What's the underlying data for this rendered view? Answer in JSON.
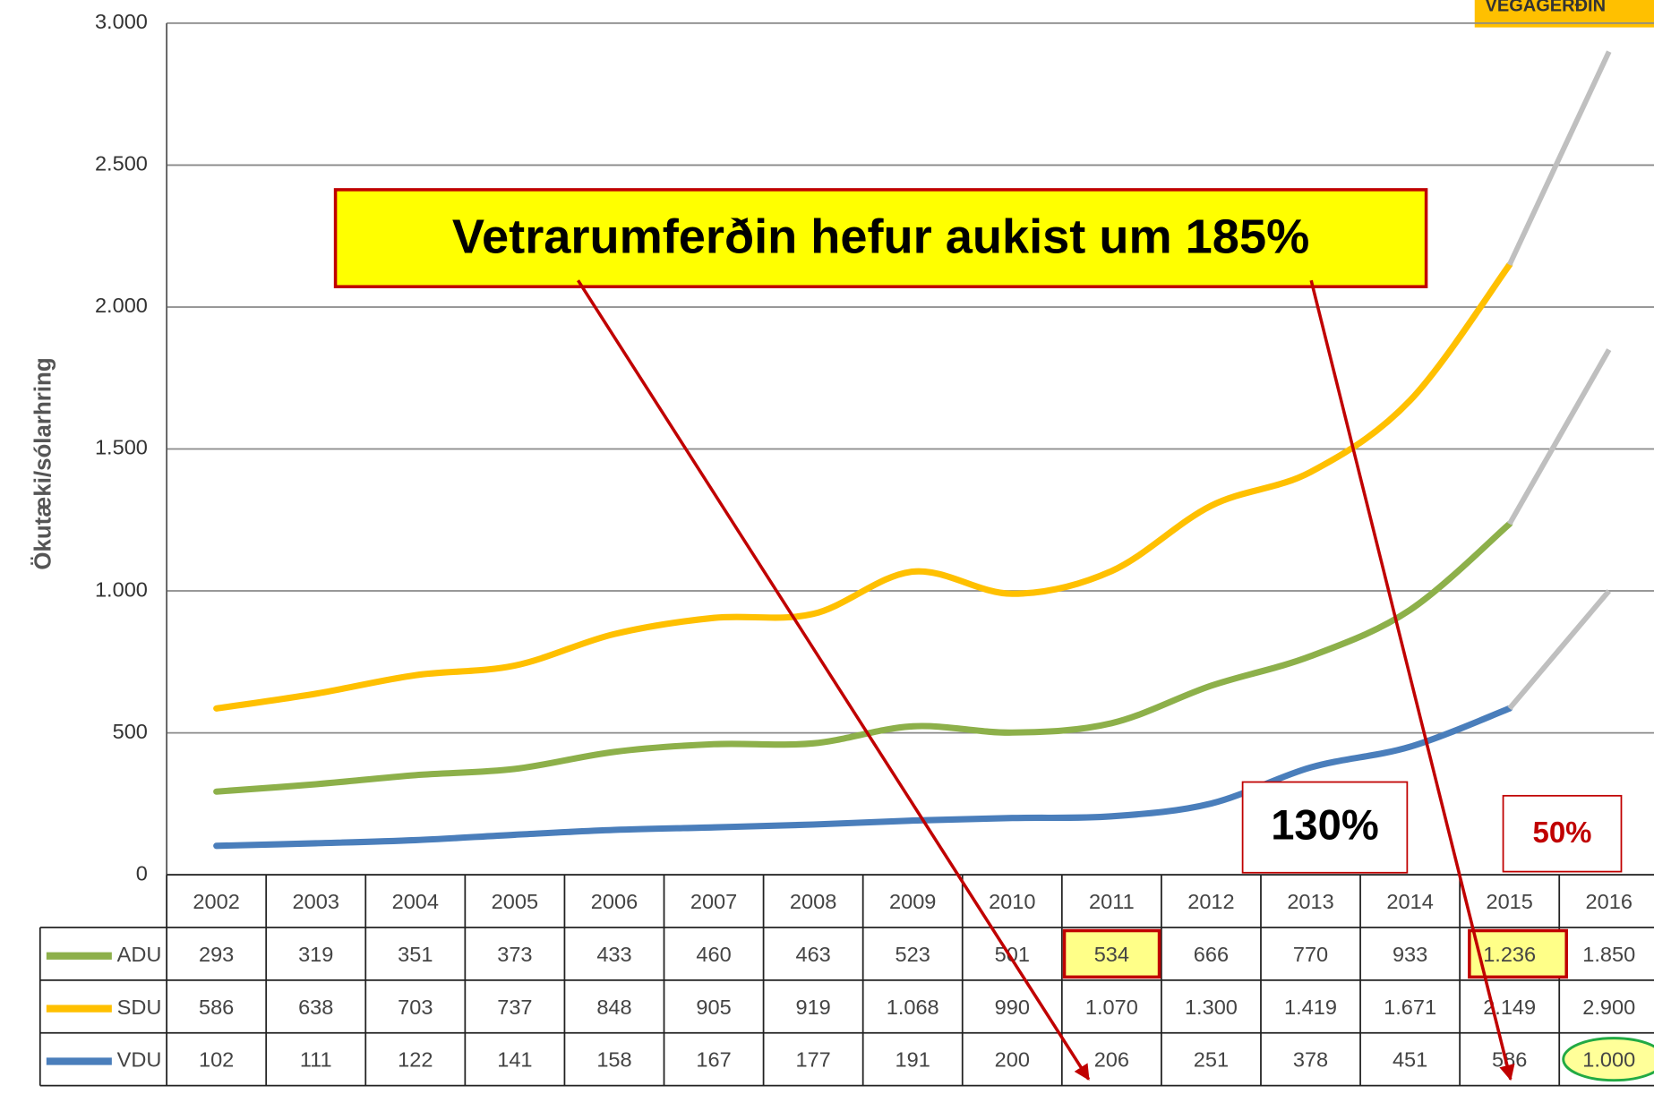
{
  "chart_data": {
    "type": "line",
    "logo": "VEGAGERÐIN",
    "y_label": "Ökutæki/sólarhring",
    "annotations": [
      "Vetrarumferðin hefur aukist um 185%",
      "130%",
      "50%"
    ],
    "categories": [
      "2002",
      "2003",
      "2004",
      "2005",
      "2006",
      "2007",
      "2008",
      "2009",
      "2010",
      "2011",
      "2012",
      "2013",
      "2014",
      "2015",
      "2016"
    ],
    "series": [
      {
        "name": "ADU",
        "color": "#8db04a",
        "values": [
          293,
          319,
          351,
          373,
          433,
          460,
          463,
          523,
          501,
          534,
          666,
          770,
          933,
          1236,
          1850
        ],
        "value_labels": [
          "293",
          "319",
          "351",
          "373",
          "433",
          "460",
          "463",
          "523",
          "501",
          "534",
          "666",
          "770",
          "933",
          "1.236",
          "1.850"
        ]
      },
      {
        "name": "SDU",
        "color": "#ffc000",
        "values": [
          586,
          638,
          703,
          737,
          848,
          905,
          919,
          1068,
          990,
          1070,
          1300,
          1419,
          1671,
          2149,
          2900
        ],
        "value_labels": [
          "586",
          "638",
          "703",
          "737",
          "848",
          "905",
          "919",
          "1.068",
          "990",
          "1.070",
          "1.300",
          "1.419",
          "1.671",
          "2.149",
          "2.900"
        ]
      },
      {
        "name": "VDU",
        "color": "#4a7ebb",
        "values": [
          102,
          111,
          122,
          141,
          158,
          167,
          177,
          191,
          200,
          206,
          251,
          378,
          451,
          586,
          1000
        ],
        "value_labels": [
          "102",
          "111",
          "122",
          "141",
          "158",
          "167",
          "177",
          "191",
          "200",
          "206",
          "251",
          "378",
          "451",
          "586",
          "1.000"
        ]
      }
    ],
    "projection_color": "#bfbfbf",
    "ylim": [
      0,
      3000
    ],
    "yticks": [
      0,
      500,
      {
        "value": 1000,
        "label": "1.000"
      },
      {
        "value": 1500,
        "label": "1.500"
      },
      {
        "value": 2000,
        "label": "2.000"
      },
      {
        "value": 2500,
        "label": "2.500"
      },
      {
        "value": 3000,
        "label": "3.000"
      }
    ],
    "grid": true
  }
}
